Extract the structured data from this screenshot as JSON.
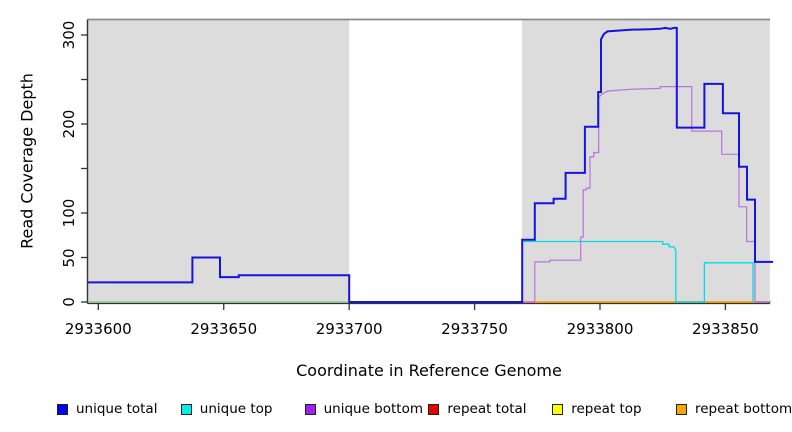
{
  "chart_data": {
    "type": "line",
    "step": true,
    "title": "",
    "xlabel": "Coordinate in Reference Genome",
    "ylabel": "Read Coverage Depth",
    "xlim": [
      2933595.7,
      2933869
    ],
    "ylim": [
      0,
      315
    ],
    "grid": false,
    "legend_position": "bottom",
    "panel_color": "#ffffff",
    "shaded_region_color": "#dcdcdc",
    "shaded_region_top_border_color": "#8a8a8a",
    "shaded_regions": [
      {
        "from": 2933595.7,
        "to": 2933700
      },
      {
        "from": 2933768.9,
        "to": 2933867.7
      }
    ],
    "x_ticks": [
      {
        "value": 2933600,
        "label": "2933600"
      },
      {
        "value": 2933650,
        "label": "2933650"
      },
      {
        "value": 2933700,
        "label": "2933700"
      },
      {
        "value": 2933750,
        "label": "2933750"
      },
      {
        "value": 2933800,
        "label": "2933800"
      },
      {
        "value": 2933850,
        "label": "2933850"
      }
    ],
    "y_ticks": [
      {
        "value": 0,
        "label": "0"
      },
      {
        "value": 50,
        "label": "50"
      },
      {
        "value": 100,
        "label": "100"
      },
      {
        "value": 150,
        "label": ""
      },
      {
        "value": 200,
        "label": "200"
      },
      {
        "value": 250,
        "label": ""
      },
      {
        "value": 300,
        "label": "300"
      }
    ],
    "series": [
      {
        "name": "repeat total",
        "color": "#e60000",
        "width": 1.2,
        "points": [
          [
            2933769,
            0
          ],
          [
            2933868,
            0
          ]
        ]
      },
      {
        "name": "repeat top",
        "color": "#f0e622",
        "width": 1.2,
        "points": [
          [
            2933769,
            0
          ],
          [
            2933868,
            0
          ]
        ]
      },
      {
        "name": "repeat bottom",
        "color": "#ffa500",
        "width": 1.6,
        "points": [
          [
            2933769,
            0
          ],
          [
            2933868,
            0
          ]
        ]
      },
      {
        "name": "unique top",
        "color": "#00dce6",
        "width": 1.3,
        "points": [
          [
            2933769,
            0
          ],
          [
            2933769,
            68
          ],
          [
            2933825,
            68
          ],
          [
            2933825,
            65
          ],
          [
            2933827.5,
            65
          ],
          [
            2933827.5,
            62
          ],
          [
            2933829.5,
            62
          ],
          [
            2933830.2,
            58
          ],
          [
            2933830.2,
            0
          ],
          [
            2933841.6,
            0
          ],
          [
            2933841.6,
            44
          ],
          [
            2933861,
            44
          ],
          [
            2933861,
            0
          ]
        ]
      },
      {
        "name": "unique bottom",
        "color": "#b973db",
        "width": 1.2,
        "points": [
          [
            2933774,
            0
          ],
          [
            2933774,
            45
          ],
          [
            2933780,
            45
          ],
          [
            2933780,
            47
          ],
          [
            2933792.3,
            47
          ],
          [
            2933792.3,
            73
          ],
          [
            2933793.3,
            73
          ],
          [
            2933793.3,
            126
          ],
          [
            2933794.5,
            126
          ],
          [
            2933794.5,
            128
          ],
          [
            2933796,
            128
          ],
          [
            2933796,
            163
          ],
          [
            2933797.5,
            163
          ],
          [
            2933797.5,
            168
          ],
          [
            2933799.5,
            168
          ],
          [
            2933799.5,
            230
          ],
          [
            2933801,
            234
          ],
          [
            2933803,
            237
          ],
          [
            2933812,
            239
          ],
          [
            2933824,
            240
          ],
          [
            2933824,
            242
          ],
          [
            2933836.6,
            242
          ],
          [
            2933836.6,
            192
          ],
          [
            2933848.5,
            192
          ],
          [
            2933848.5,
            166
          ],
          [
            2933855.4,
            166
          ],
          [
            2933855.4,
            107
          ],
          [
            2933858.5,
            107
          ],
          [
            2933858.5,
            68
          ],
          [
            2933861.8,
            68
          ],
          [
            2933861.8,
            0
          ],
          [
            2933868,
            0
          ]
        ]
      },
      {
        "name": "unique total",
        "color": "#1414e0",
        "width": 2,
        "points": [
          [
            2933595.7,
            22
          ],
          [
            2933637.5,
            22
          ],
          [
            2933637.5,
            50
          ],
          [
            2933648.5,
            50
          ],
          [
            2933648.5,
            28
          ],
          [
            2933656,
            28
          ],
          [
            2933656,
            30
          ],
          [
            2933700,
            30
          ],
          [
            2933700,
            0
          ],
          [
            2933769,
            0
          ],
          [
            2933769,
            70
          ],
          [
            2933774,
            70
          ],
          [
            2933774,
            111
          ],
          [
            2933781.5,
            111
          ],
          [
            2933781.5,
            116
          ],
          [
            2933786.3,
            116
          ],
          [
            2933786.3,
            145
          ],
          [
            2933794,
            145
          ],
          [
            2933794,
            197
          ],
          [
            2933799.3,
            197
          ],
          [
            2933799.3,
            236
          ],
          [
            2933800.4,
            236
          ],
          [
            2933800.4,
            295
          ],
          [
            2933801.5,
            301
          ],
          [
            2933803,
            304
          ],
          [
            2933812,
            306
          ],
          [
            2933820,
            306.5
          ],
          [
            2933824,
            307
          ],
          [
            2933826,
            308
          ],
          [
            2933828,
            307
          ],
          [
            2933829.5,
            308
          ],
          [
            2933830.6,
            308
          ],
          [
            2933830.6,
            196
          ],
          [
            2933841.6,
            196
          ],
          [
            2933841.6,
            245
          ],
          [
            2933849,
            245
          ],
          [
            2933849,
            212
          ],
          [
            2933855.4,
            212
          ],
          [
            2933855.4,
            152
          ],
          [
            2933858.6,
            152
          ],
          [
            2933858.6,
            115
          ],
          [
            2933861.8,
            115
          ],
          [
            2933861.8,
            45
          ],
          [
            2933869,
            45
          ]
        ]
      }
    ],
    "zero_overlap_segments": [
      {
        "color": "#8fce8f",
        "from": 2933595.7,
        "to": 2933700,
        "value": 0
      },
      {
        "color": "#8fce8f",
        "from": 2933830,
        "to": 2933841.6,
        "value": 0
      },
      {
        "color": "#df6ec8",
        "from": 2933769,
        "to": 2933774,
        "value": 0
      },
      {
        "color": "#df6ec8",
        "from": 2933862,
        "to": 2933868,
        "value": 0
      }
    ],
    "legend": [
      {
        "label": "unique total",
        "color": "#0000f5"
      },
      {
        "label": "unique top",
        "color": "#00eeee"
      },
      {
        "label": "unique bottom",
        "color": "#a020f0"
      },
      {
        "label": "repeat total",
        "color": "#e60000"
      },
      {
        "label": "repeat top",
        "color": "#ffff00"
      },
      {
        "label": "repeat bottom",
        "color": "#ffa500"
      }
    ]
  }
}
